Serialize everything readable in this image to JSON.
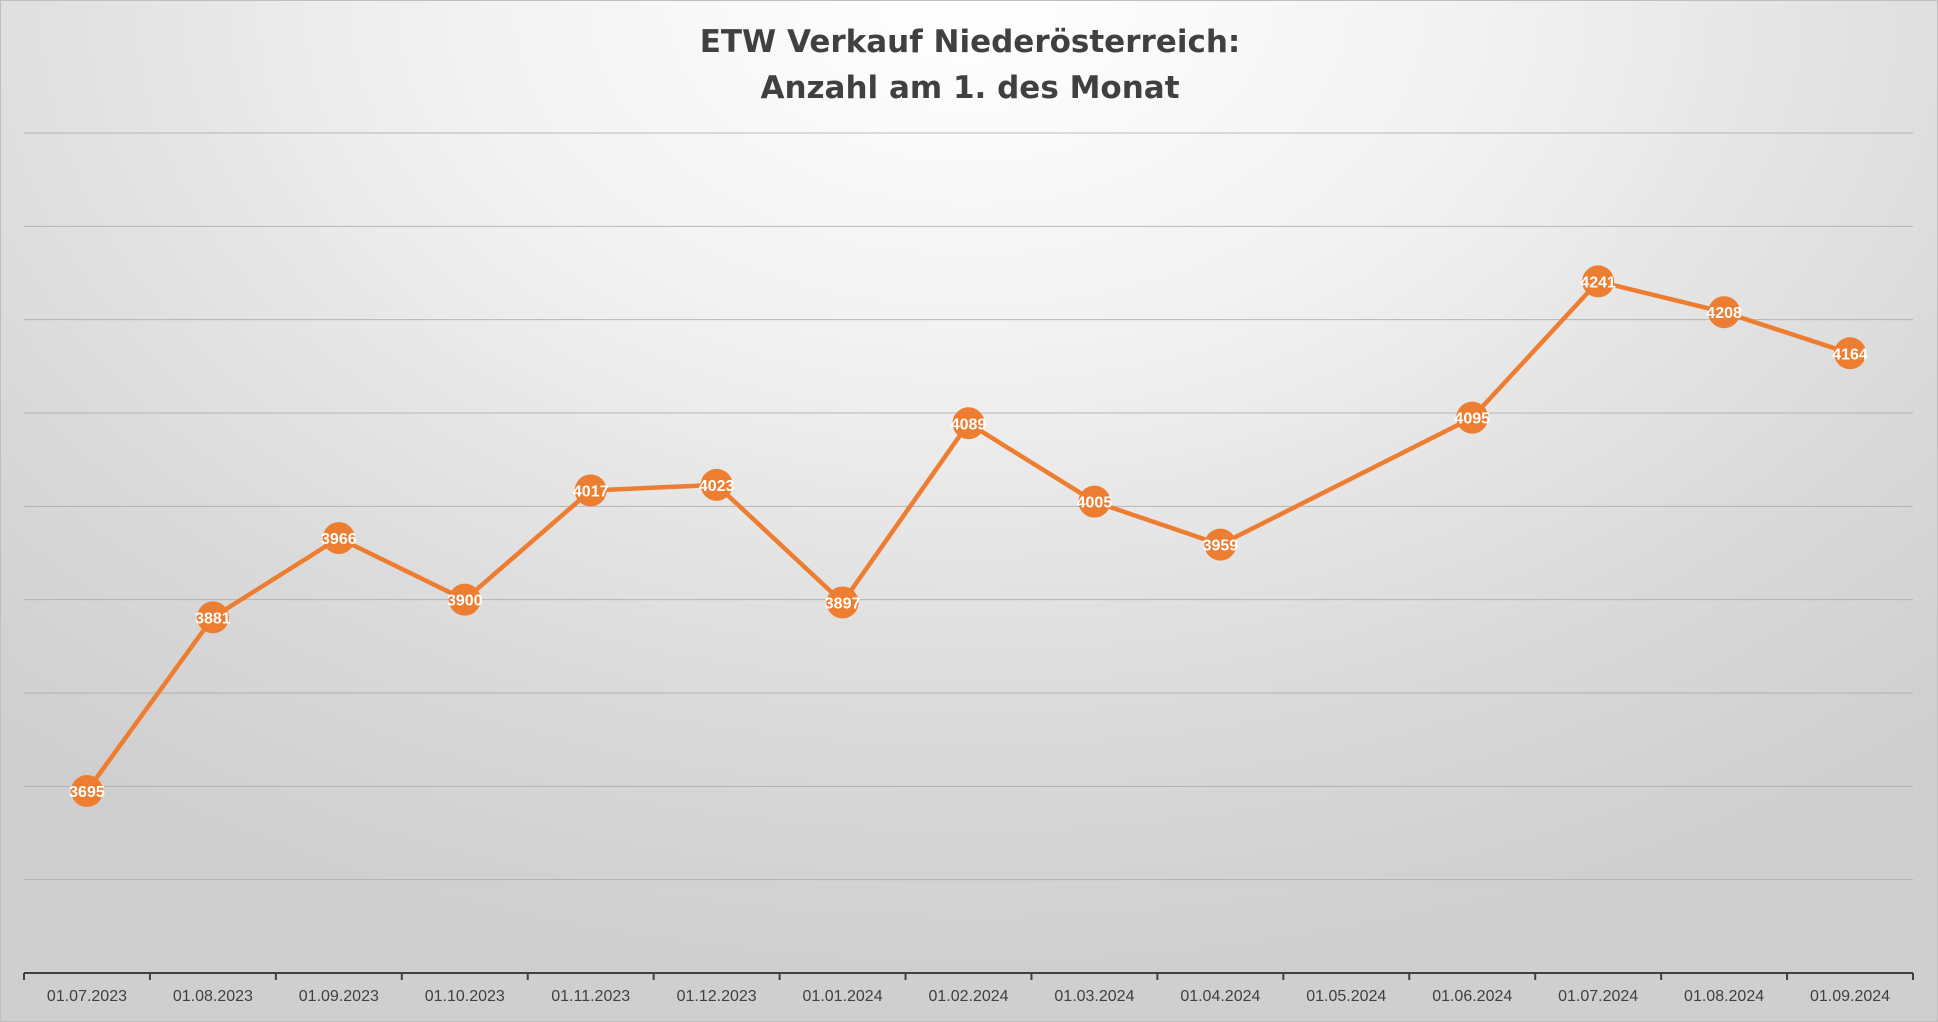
{
  "chart_data": {
    "type": "line",
    "title_lines": [
      "ETW  Verkauf Niederösterreich:",
      "Anzahl am 1. des Monat"
    ],
    "xlabel": "",
    "ylabel": "",
    "categories": [
      "01.07.2023",
      "01.08.2023",
      "01.09.2023",
      "01.10.2023",
      "01.11.2023",
      "01.12.2023",
      "01.01.2024",
      "01.02.2024",
      "01.03.2024",
      "01.04.2024",
      "01.05.2024",
      "01.06.2024",
      "01.07.2024",
      "01.08.2024",
      "01.09.2024"
    ],
    "series": [
      {
        "values": [
          3695,
          3881,
          3966,
          3900,
          4017,
          4023,
          3897,
          4089,
          4005,
          3959,
          null,
          4095,
          4241,
          4208,
          4164
        ],
        "color": "#ed7d31"
      }
    ],
    "ylim": [
      3500,
      4400
    ],
    "grid": true,
    "grid_color": "#a6a6a6",
    "y_tick_labels_visible": false,
    "label_color": "#ffffff",
    "axis_text_color": "#404040"
  }
}
